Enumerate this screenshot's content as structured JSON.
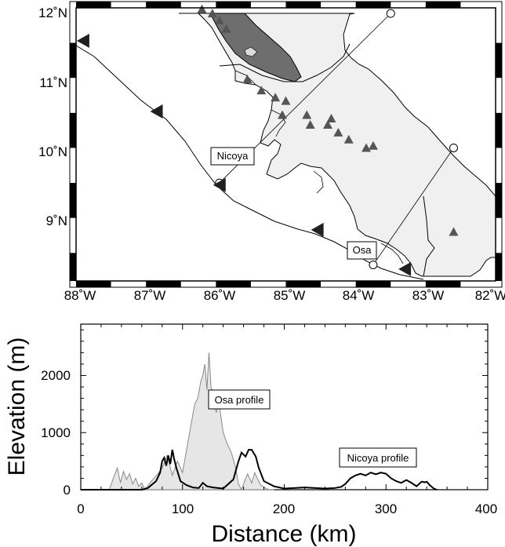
{
  "chart_data": [
    {
      "type": "map",
      "x_ticks": [
        "88˚W",
        "87˚W",
        "86˚W",
        "85˚W",
        "84˚W",
        "83˚W",
        "82˚W"
      ],
      "y_ticks": [
        "12˚N",
        "11˚N",
        "10˚N",
        "9˚N"
      ],
      "xlim": [
        -88,
        -82
      ],
      "ylim": [
        8.1,
        12.0
      ],
      "labels": {
        "nicoya": "Nicoya",
        "osa": "Osa"
      },
      "colors": {
        "land": "#f0f0f0",
        "lake": "#6e6e6e",
        "volcano": "#555555",
        "trench_arrow": "#202020"
      },
      "volcanoes": [
        [
          -86.2,
          11.98
        ],
        [
          -86.05,
          11.92
        ],
        [
          -85.95,
          11.82
        ],
        [
          -85.85,
          11.7
        ],
        [
          -85.55,
          10.98
        ],
        [
          -85.35,
          10.82
        ],
        [
          -85.15,
          10.72
        ],
        [
          -85.0,
          10.67
        ],
        [
          -85.05,
          10.47
        ],
        [
          -84.7,
          10.47
        ],
        [
          -84.65,
          10.33
        ],
        [
          -84.35,
          10.42
        ],
        [
          -84.4,
          10.33
        ],
        [
          -84.25,
          10.22
        ],
        [
          -84.1,
          10.12
        ],
        [
          -83.85,
          10.0
        ],
        [
          -83.75,
          10.03
        ],
        [
          -82.6,
          8.8
        ]
      ],
      "trench_arrows": [
        [
          -87.9,
          11.53
        ],
        [
          -86.85,
          10.52
        ],
        [
          -85.95,
          9.47
        ],
        [
          -84.55,
          8.83
        ],
        [
          -83.3,
          8.27
        ]
      ],
      "profiles": [
        {
          "name": "Nicoya",
          "from": [
            -85.95,
            9.5
          ],
          "to": [
            -83.5,
            11.92
          ]
        },
        {
          "name": "Osa",
          "from": [
            -83.75,
            8.33
          ],
          "to": [
            -82.6,
            10.0
          ]
        }
      ]
    },
    {
      "type": "line",
      "xlabel": "Distance (km)",
      "ylabel": "Elevation (m)",
      "xlim": [
        0,
        400
      ],
      "ylim": [
        0,
        2900
      ],
      "x_ticks": [
        0,
        100,
        200,
        300,
        400
      ],
      "y_ticks": [
        0,
        1000,
        2000
      ],
      "annotations": {
        "osa": "Osa profile",
        "nicoya": "Nicoya profile"
      },
      "series": [
        {
          "name": "Osa profile",
          "x": [
            0,
            28,
            33,
            36,
            39,
            42,
            45,
            48,
            51,
            54,
            57,
            60,
            63,
            68,
            75,
            80,
            85,
            90,
            95,
            100,
            105,
            108,
            112,
            115,
            118,
            120,
            122,
            124,
            126,
            128,
            130,
            133,
            136,
            140,
            144,
            148,
            152,
            155,
            158,
            161,
            164,
            166,
            168,
            171,
            174,
            177,
            180,
            185,
            190
          ],
          "y": [
            0,
            0,
            250,
            380,
            120,
            320,
            180,
            280,
            100,
            200,
            60,
            120,
            0,
            120,
            260,
            380,
            600,
            250,
            500,
            300,
            800,
            1100,
            1500,
            1600,
            1900,
            2000,
            2200,
            1750,
            2400,
            1800,
            1700,
            1350,
            1500,
            1000,
            800,
            650,
            400,
            100,
            0,
            150,
            280,
            200,
            120,
            300,
            180,
            80,
            40,
            0,
            0
          ]
        },
        {
          "name": "Nicoya profile",
          "x": [
            0,
            60,
            66,
            70,
            74,
            78,
            80,
            82,
            84,
            86,
            88,
            90,
            92,
            94,
            98,
            104,
            110,
            116,
            120,
            124,
            130,
            140,
            150,
            155,
            158,
            162,
            165,
            168,
            172,
            175,
            180,
            190,
            200,
            220,
            240,
            250,
            256,
            260,
            265,
            270,
            275,
            280,
            285,
            290,
            295,
            300,
            305,
            310,
            315,
            320,
            325,
            330,
            335,
            338,
            340,
            343,
            347,
            350
          ],
          "y": [
            0,
            0,
            30,
            90,
            150,
            300,
            500,
            560,
            420,
            600,
            450,
            700,
            520,
            380,
            150,
            80,
            40,
            30,
            120,
            60,
            40,
            20,
            180,
            500,
            650,
            580,
            700,
            700,
            580,
            380,
            150,
            60,
            20,
            40,
            20,
            30,
            50,
            100,
            200,
            250,
            280,
            250,
            300,
            270,
            300,
            280,
            200,
            150,
            120,
            170,
            120,
            60,
            140,
            130,
            140,
            80,
            20,
            0
          ]
        }
      ]
    }
  ]
}
